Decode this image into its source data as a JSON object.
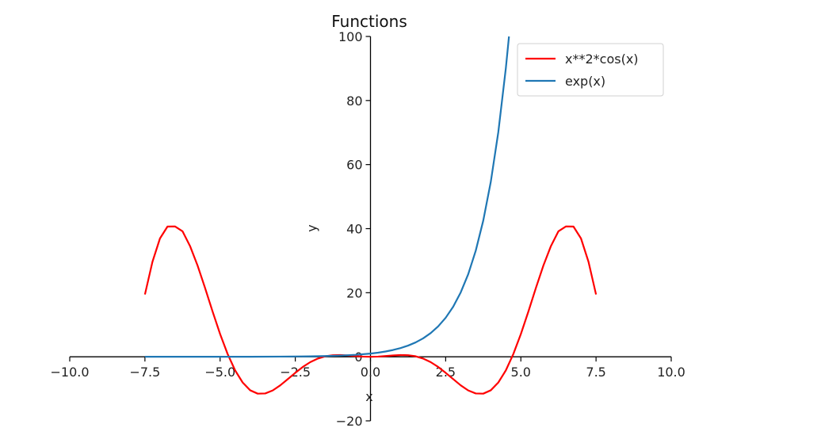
{
  "chart_data": {
    "type": "line",
    "title": "Functions",
    "xlabel": "x",
    "ylabel": "y",
    "xlim": [
      -10,
      10
    ],
    "ylim": [
      -20,
      100
    ],
    "x_ticks": [
      "−10.0",
      "−7.5",
      "−5.0",
      "−2.5",
      "0.0",
      "2.5",
      "5.0",
      "7.5",
      "10.0"
    ],
    "x_tick_values": [
      -10,
      -7.5,
      -5,
      -2.5,
      0,
      2.5,
      5,
      7.5,
      10
    ],
    "y_ticks": [
      "−20",
      "0",
      "20",
      "40",
      "60",
      "80",
      "100"
    ],
    "y_tick_values": [
      -20,
      0,
      20,
      40,
      60,
      80,
      100
    ],
    "grid": false,
    "spines": "centered",
    "legend": {
      "placement": "top-right",
      "entries": [
        "x**2*cos(x)",
        "exp(x)"
      ]
    },
    "series": [
      {
        "name": "x**2*cos(x)",
        "color": "#ff0000",
        "x": [
          -7.5,
          -7.25,
          -7.0,
          -6.75,
          -6.5,
          -6.25,
          -6.0,
          -5.75,
          -5.5,
          -5.25,
          -5.0,
          -4.75,
          -4.5,
          -4.25,
          -4.0,
          -3.75,
          -3.5,
          -3.25,
          -3.0,
          -2.75,
          -2.5,
          -2.25,
          -2.0,
          -1.75,
          -1.5,
          -1.25,
          -1.0,
          -0.75,
          -0.5,
          -0.25,
          0.0,
          0.25,
          0.5,
          0.75,
          1.0,
          1.25,
          1.5,
          1.75,
          2.0,
          2.25,
          2.5,
          2.75,
          3.0,
          3.25,
          3.5,
          3.75,
          4.0,
          4.25,
          4.5,
          4.75,
          5.0,
          5.25,
          5.5,
          5.75,
          6.0,
          6.25,
          6.5,
          6.75,
          7.0,
          7.25,
          7.5
        ],
        "y": [
          19.45,
          29.64,
          36.94,
          40.65,
          40.69,
          39.19,
          34.57,
          28.49,
          21.48,
          14.12,
          7.09,
          0.86,
          -4.26,
          -8.03,
          -10.46,
          -11.51,
          -11.45,
          -10.51,
          -8.91,
          -6.97,
          -5.01,
          -3.17,
          -1.66,
          -0.55,
          0.16,
          0.49,
          0.54,
          0.41,
          0.22,
          0.06,
          0.0,
          0.06,
          0.22,
          0.41,
          0.54,
          0.49,
          0.16,
          -0.55,
          -1.66,
          -3.17,
          -5.01,
          -6.97,
          -8.91,
          -10.51,
          -11.45,
          -11.51,
          -10.46,
          -8.03,
          -4.26,
          0.86,
          7.09,
          14.12,
          21.48,
          28.49,
          34.57,
          39.19,
          40.69,
          40.65,
          36.94,
          29.64,
          19.45
        ]
      },
      {
        "name": "exp(x)",
        "color": "#1f77b4",
        "x": [
          -7.5,
          -6.0,
          -5.0,
          -4.0,
          -3.0,
          -2.0,
          -1.5,
          -1.0,
          -0.5,
          0.0,
          0.25,
          0.5,
          0.75,
          1.0,
          1.25,
          1.5,
          1.75,
          2.0,
          2.25,
          2.5,
          2.75,
          3.0,
          3.25,
          3.5,
          3.75,
          4.0,
          4.25,
          4.5,
          4.6052
        ],
        "y": [
          0.00055,
          0.0025,
          0.0067,
          0.018,
          0.05,
          0.135,
          0.223,
          0.368,
          0.607,
          1.0,
          1.284,
          1.649,
          2.117,
          2.718,
          3.49,
          4.482,
          5.755,
          7.389,
          9.488,
          12.18,
          15.64,
          20.09,
          25.79,
          33.12,
          42.52,
          54.6,
          70.11,
          90.02,
          100.0
        ]
      }
    ]
  }
}
